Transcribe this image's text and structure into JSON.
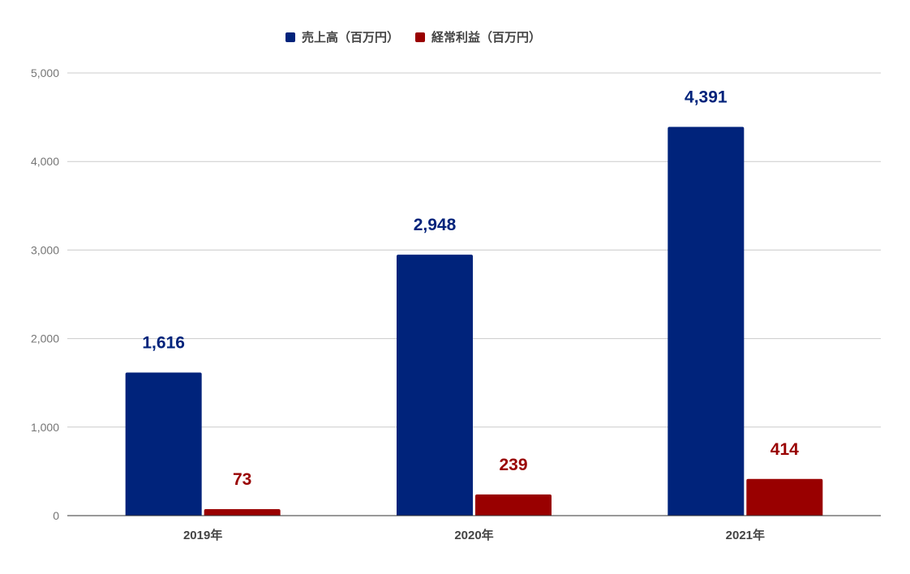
{
  "chart_data": {
    "type": "bar",
    "categories": [
      "2019年",
      "2020年",
      "2021年"
    ],
    "series": [
      {
        "name": "売上高（百万円）",
        "values": [
          1616,
          2948,
          4391
        ],
        "labels": [
          "1,616",
          "2,948",
          "4,391"
        ],
        "color": "#00237B"
      },
      {
        "name": "経常利益（百万円）",
        "values": [
          73,
          239,
          414
        ],
        "labels": [
          "73",
          "239",
          "414"
        ],
        "color": "#990000"
      }
    ],
    "ylim": [
      0,
      5000
    ],
    "yticks": [
      0,
      1000,
      2000,
      3000,
      4000,
      5000
    ],
    "ytick_labels": [
      "0",
      "1,000",
      "2,000",
      "3,000",
      "4,000",
      "5,000"
    ],
    "title": "",
    "xlabel": "",
    "ylabel": "",
    "grid": true,
    "legend_position": "top",
    "colors": {
      "grid": "#cccccc",
      "axis": "#333333",
      "tick_text": "#757575",
      "category_text": "#444444",
      "legend_text": "#444444"
    }
  }
}
